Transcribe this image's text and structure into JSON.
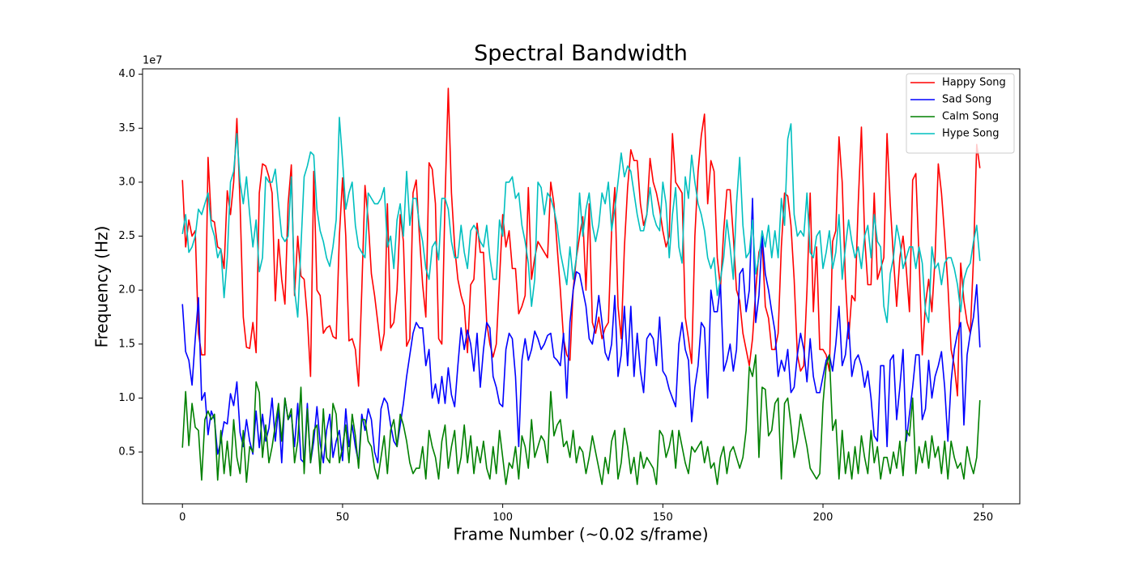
{
  "chart_data": {
    "type": "line",
    "title": "Spectral Bandwidth",
    "x_label": "Frame Number (~0.02 s/frame)",
    "y_label": "Frequency (Hz)",
    "y_offset_label": "1e7",
    "xlim": [
      -12.45,
      261.45
    ],
    "xticks": [
      0,
      50,
      100,
      150,
      200,
      250
    ],
    "ylim": [
      0.02,
      4.05
    ],
    "yticks": [
      0.5,
      {
        "value": 1,
        "label": "1.0"
      },
      1.5,
      {
        "value": 2,
        "label": "2.0"
      },
      2.5,
      {
        "value": 3,
        "label": "3.0"
      },
      3.5,
      {
        "value": 4,
        "label": "4.0"
      }
    ],
    "grid": false,
    "legend": "upper right",
    "x": [
      0,
      1,
      2,
      3,
      4,
      5,
      6,
      7,
      8,
      9,
      10,
      11,
      12,
      13,
      14,
      15,
      16,
      17,
      18,
      19,
      20,
      21,
      22,
      23,
      24,
      25,
      26,
      27,
      28,
      29,
      30,
      31,
      32,
      33,
      34,
      35,
      36,
      37,
      38,
      39,
      40,
      41,
      42,
      43,
      44,
      45,
      46,
      47,
      48,
      49,
      50,
      51,
      52,
      53,
      54,
      55,
      56,
      57,
      58,
      59,
      60,
      61,
      62,
      63,
      64,
      65,
      66,
      67,
      68,
      69,
      70,
      71,
      72,
      73,
      74,
      75,
      76,
      77,
      78,
      79,
      80,
      81,
      82,
      83,
      84,
      85,
      86,
      87,
      88,
      89,
      90,
      91,
      92,
      93,
      94,
      95,
      96,
      97,
      98,
      99,
      100,
      101,
      102,
      103,
      104,
      105,
      106,
      107,
      108,
      109,
      110,
      111,
      112,
      113,
      114,
      115,
      116,
      117,
      118,
      119,
      120,
      121,
      122,
      123,
      124,
      125,
      126,
      127,
      128,
      129,
      130,
      131,
      132,
      133,
      134,
      135,
      136,
      137,
      138,
      139,
      140,
      141,
      142,
      143,
      144,
      145,
      146,
      147,
      148,
      149,
      150,
      151,
      152,
      153,
      154,
      155,
      156,
      157,
      158,
      159,
      160,
      161,
      162,
      163,
      164,
      165,
      166,
      167,
      168,
      169,
      170,
      171,
      172,
      173,
      174,
      175,
      176,
      177,
      178,
      179,
      180,
      181,
      182,
      183,
      184,
      185,
      186,
      187,
      188,
      189,
      190,
      191,
      192,
      193,
      194,
      195,
      196,
      197,
      198,
      199,
      200,
      201,
      202,
      203,
      204,
      205,
      206,
      207,
      208,
      209,
      210,
      211,
      212,
      213,
      214,
      215,
      216,
      217,
      218,
      219,
      220,
      221,
      222,
      223,
      224,
      225,
      226,
      227,
      228,
      229,
      230,
      231,
      232,
      233,
      234,
      235,
      236,
      237,
      238,
      239,
      240,
      241,
      242,
      243,
      244,
      245,
      246,
      247,
      248,
      249
    ],
    "series": [
      {
        "name": "Happy Song",
        "color": "#ff0000",
        "values": [
          3.02,
          2.4,
          2.65,
          2.5,
          2.55,
          1.6,
          1.4,
          1.4,
          3.23,
          2.65,
          2.63,
          2.4,
          2.38,
          2.2,
          2.92,
          2.7,
          3.0,
          3.59,
          2.8,
          1.75,
          1.47,
          1.46,
          1.7,
          1.42,
          2.9,
          3.17,
          3.15,
          3.05,
          2.9,
          1.9,
          2.47,
          2.1,
          1.87,
          2.8,
          3.16,
          1.95,
          2.5,
          2.13,
          2.1,
          1.75,
          1.2,
          3.1,
          2.0,
          1.95,
          1.6,
          1.65,
          1.67,
          1.57,
          1.55,
          2.5,
          3.04,
          2.5,
          1.53,
          1.55,
          1.45,
          1.11,
          2.0,
          2.97,
          2.65,
          2.15,
          1.95,
          1.7,
          1.44,
          1.6,
          2.8,
          1.65,
          1.7,
          2.0,
          2.7,
          2.45,
          1.48,
          1.55,
          2.9,
          3.02,
          2.5,
          2.05,
          1.75,
          3.18,
          3.12,
          2.8,
          1.55,
          1.5,
          2.85,
          3.87,
          2.9,
          2.4,
          2.1,
          1.95,
          1.85,
          1.42,
          2.05,
          2.1,
          2.62,
          2.35,
          2.35,
          1.7,
          1.5,
          1.38,
          1.5,
          2.1,
          2.7,
          2.4,
          2.55,
          2.2,
          2.2,
          1.78,
          1.85,
          1.95,
          2.95,
          2.1,
          2.3,
          2.45,
          2.4,
          2.35,
          2.3,
          3.0,
          2.8,
          2.4,
          2.0,
          1.55,
          1.4,
          1.35,
          2.0,
          2.3,
          2.5,
          2.68,
          2.0,
          2.8,
          1.7,
          1.6,
          1.75,
          1.55,
          1.65,
          1.7,
          2.55,
          2.95,
          1.85,
          1.55,
          2.4,
          2.95,
          3.3,
          3.2,
          3.2,
          2.8,
          2.6,
          2.7,
          3.22,
          3.0,
          2.9,
          2.75,
          2.55,
          2.4,
          2.5,
          3.45,
          3.0,
          2.95,
          2.9,
          1.75,
          1.55,
          1.32,
          2.5,
          3.1,
          3.43,
          3.63,
          2.8,
          3.2,
          3.1,
          2.3,
          2.02,
          2.55,
          2.93,
          2.93,
          2.5,
          2.0,
          1.9,
          1.6,
          1.45,
          1.3,
          1.55,
          2.0,
          2.35,
          2.45,
          1.85,
          1.74,
          1.45,
          1.45,
          1.6,
          2.4,
          2.9,
          2.87,
          2.6,
          2.1,
          1.4,
          1.25,
          1.3,
          2.0,
          2.9,
          1.8,
          2.4,
          1.45,
          1.45,
          1.4,
          1.25,
          2.45,
          2.55,
          3.42,
          3.0,
          2.1,
          1.55,
          1.95,
          1.9,
          2.8,
          3.51,
          2.5,
          2.05,
          2.05,
          2.9,
          2.1,
          2.2,
          2.3,
          3.45,
          2.8,
          2.3,
          1.85,
          2.3,
          2.5,
          2.2,
          1.8,
          3.02,
          3.08,
          2.3,
          1.4,
          1.87,
          2.1,
          1.8,
          2.3,
          3.17,
          2.9,
          2.5,
          2.05,
          1.45,
          1.3,
          1.02,
          2.25,
          1.9,
          1.7,
          1.6,
          2.3,
          3.35,
          3.13
        ]
      },
      {
        "name": "Sad Song",
        "color": "#0000ff",
        "values": [
          1.87,
          1.43,
          1.35,
          1.12,
          1.55,
          1.93,
          0.98,
          1.05,
          0.66,
          0.88,
          0.8,
          0.48,
          0.6,
          0.78,
          0.76,
          1.04,
          0.93,
          1.15,
          0.68,
          0.55,
          0.8,
          0.6,
          0.48,
          0.88,
          0.54,
          0.85,
          0.6,
          0.72,
          1.0,
          0.6,
          0.9,
          0.4,
          1.0,
          0.8,
          0.85,
          0.55,
          0.95,
          0.43,
          0.4,
          0.95,
          0.4,
          0.6,
          0.92,
          0.58,
          0.4,
          0.7,
          0.85,
          0.45,
          0.6,
          0.7,
          0.42,
          0.9,
          0.55,
          0.75,
          0.55,
          0.4,
          0.85,
          0.7,
          0.9,
          0.8,
          0.5,
          0.4,
          0.9,
          1.0,
          0.95,
          0.75,
          0.6,
          0.55,
          0.75,
          0.95,
          1.2,
          1.4,
          1.6,
          1.7,
          1.65,
          1.65,
          1.3,
          1.45,
          1.0,
          1.13,
          0.95,
          1.2,
          0.95,
          1.28,
          1.03,
          0.92,
          1.3,
          1.65,
          1.45,
          1.63,
          1.5,
          1.25,
          1.6,
          1.1,
          1.45,
          1.7,
          1.65,
          1.2,
          1.1,
          0.95,
          0.92,
          1.45,
          1.6,
          1.55,
          1.2,
          0.55,
          1.35,
          1.55,
          1.35,
          1.45,
          1.62,
          1.55,
          1.45,
          1.5,
          1.58,
          1.6,
          1.38,
          1.35,
          1.3,
          1.6,
          1.0,
          1.7,
          2.0,
          2.17,
          2.15,
          2.0,
          1.85,
          1.55,
          1.5,
          1.7,
          1.95,
          1.7,
          1.42,
          1.35,
          1.5,
          1.95,
          1.2,
          1.4,
          1.85,
          1.3,
          1.85,
          1.2,
          1.6,
          1.25,
          1.05,
          1.55,
          1.6,
          1.55,
          1.3,
          1.75,
          1.25,
          1.2,
          1.08,
          1.0,
          0.92,
          1.5,
          1.7,
          1.45,
          1.35,
          0.78,
          1.1,
          1.3,
          1.7,
          1.65,
          1.0,
          2.0,
          1.8,
          1.8,
          2.05,
          1.25,
          1.35,
          1.5,
          1.25,
          1.45,
          2.15,
          2.2,
          1.8,
          2.0,
          2.85,
          1.7,
          1.95,
          2.5,
          2.15,
          2.0,
          1.8,
          1.62,
          1.2,
          1.35,
          1.25,
          1.45,
          1.05,
          1.1,
          1.4,
          1.6,
          1.45,
          1.15,
          1.55,
          1.2,
          1.05,
          1.05,
          1.2,
          1.35,
          1.4,
          1.25,
          1.5,
          1.85,
          1.3,
          1.4,
          1.7,
          1.2,
          1.35,
          1.4,
          1.3,
          1.1,
          1.25,
          1.0,
          0.65,
          0.6,
          1.3,
          1.3,
          0.55,
          1.35,
          1.4,
          0.8,
          1.1,
          1.45,
          0.6,
          0.85,
          1.1,
          1.4,
          1.4,
          0.8,
          0.9,
          1.35,
          1.0,
          1.2,
          1.3,
          1.43,
          1.1,
          0.6,
          1.15,
          1.45,
          1.6,
          1.7,
          0.75,
          1.4,
          1.6,
          1.75,
          2.05,
          1.47
        ]
      },
      {
        "name": "Calm Song",
        "color": "#008000",
        "values": [
          0.54,
          1.06,
          0.56,
          0.95,
          0.73,
          0.7,
          0.24,
          0.8,
          0.88,
          0.8,
          0.85,
          0.24,
          0.7,
          0.3,
          0.6,
          0.28,
          0.8,
          0.45,
          0.3,
          0.7,
          0.22,
          0.55,
          0.5,
          1.15,
          1.05,
          0.45,
          0.75,
          0.4,
          0.55,
          0.75,
          0.95,
          0.6,
          1.0,
          0.8,
          0.9,
          0.4,
          0.6,
          1.1,
          0.3,
          0.9,
          0.4,
          0.7,
          0.75,
          0.3,
          0.9,
          0.45,
          0.4,
          0.95,
          0.85,
          0.4,
          0.55,
          0.75,
          0.4,
          0.85,
          0.65,
          0.35,
          0.8,
          0.8,
          0.6,
          0.55,
          0.35,
          0.25,
          0.45,
          0.65,
          0.3,
          0.7,
          0.8,
          0.55,
          0.85,
          0.75,
          0.6,
          0.4,
          0.3,
          0.35,
          0.35,
          0.55,
          0.25,
          0.7,
          0.55,
          0.45,
          0.25,
          0.6,
          0.75,
          0.35,
          0.55,
          0.7,
          0.3,
          0.45,
          0.75,
          0.4,
          0.65,
          0.3,
          0.55,
          0.4,
          0.6,
          0.35,
          0.25,
          0.55,
          0.3,
          0.7,
          0.45,
          0.2,
          0.4,
          0.35,
          0.55,
          0.25,
          0.65,
          0.55,
          0.35,
          0.8,
          0.45,
          0.55,
          0.65,
          0.6,
          0.4,
          1.06,
          0.65,
          0.75,
          0.8,
          0.55,
          0.6,
          0.45,
          0.7,
          0.4,
          0.55,
          0.5,
          0.3,
          0.45,
          0.65,
          0.5,
          0.35,
          0.2,
          0.45,
          0.3,
          0.6,
          0.7,
          0.25,
          0.4,
          0.72,
          0.55,
          0.3,
          0.45,
          0.2,
          0.5,
          0.35,
          0.45,
          0.4,
          0.35,
          0.2,
          0.7,
          0.65,
          0.45,
          0.55,
          0.7,
          0.35,
          0.7,
          0.55,
          0.4,
          0.3,
          0.55,
          0.5,
          0.55,
          0.6,
          0.4,
          0.55,
          0.35,
          0.4,
          0.2,
          0.45,
          0.55,
          0.3,
          0.5,
          0.55,
          0.45,
          0.35,
          0.45,
          0.7,
          1.29,
          1.2,
          1.4,
          0.45,
          1.1,
          1.08,
          0.65,
          0.7,
          0.95,
          1.0,
          0.25,
          0.95,
          1.0,
          0.75,
          0.45,
          0.6,
          0.85,
          0.7,
          0.55,
          0.35,
          0.3,
          0.25,
          0.3,
          0.95,
          1.3,
          1.4,
          0.7,
          0.8,
          0.25,
          0.7,
          0.3,
          0.5,
          0.25,
          0.55,
          0.3,
          0.65,
          0.45,
          0.3,
          0.7,
          0.4,
          0.55,
          0.25,
          0.45,
          0.45,
          0.3,
          0.5,
          0.35,
          0.6,
          0.28,
          0.7,
          0.65,
          1.0,
          0.3,
          0.55,
          0.4,
          0.6,
          0.35,
          0.65,
          0.45,
          0.55,
          0.3,
          0.6,
          0.25,
          0.6,
          0.45,
          0.35,
          0.4,
          0.25,
          0.55,
          0.4,
          0.3,
          0.45,
          0.98
        ]
      },
      {
        "name": "Hype Song",
        "color": "#00bfbf",
        "values": [
          2.52,
          2.7,
          2.35,
          2.4,
          2.5,
          2.75,
          2.7,
          2.8,
          2.9,
          2.6,
          2.5,
          2.3,
          2.38,
          1.93,
          2.3,
          3.0,
          3.1,
          3.45,
          3.0,
          2.8,
          3.05,
          2.7,
          2.4,
          2.65,
          2.17,
          2.3,
          3.05,
          3.0,
          3.0,
          3.12,
          2.8,
          2.5,
          2.45,
          2.5,
          3.05,
          2.0,
          1.75,
          2.4,
          3.05,
          3.15,
          3.28,
          3.25,
          2.75,
          2.55,
          2.45,
          2.3,
          2.22,
          2.4,
          2.65,
          3.6,
          3.2,
          2.75,
          2.9,
          3.0,
          2.6,
          2.4,
          2.35,
          2.3,
          2.9,
          2.85,
          2.8,
          2.8,
          2.85,
          2.95,
          2.4,
          2.5,
          2.2,
          2.65,
          2.8,
          2.5,
          3.1,
          2.6,
          2.85,
          2.85,
          2.6,
          2.45,
          2.2,
          2.1,
          2.4,
          2.45,
          2.28,
          2.85,
          2.85,
          2.75,
          2.45,
          2.3,
          2.3,
          2.6,
          2.35,
          2.2,
          2.55,
          2.6,
          2.55,
          2.45,
          2.4,
          2.6,
          2.3,
          2.1,
          2.1,
          2.65,
          2.5,
          3.0,
          3.0,
          3.05,
          2.85,
          2.9,
          2.6,
          2.45,
          2.25,
          1.85,
          2.1,
          3.0,
          2.95,
          2.7,
          2.9,
          2.85,
          2.75,
          2.6,
          2.35,
          2.2,
          2.05,
          2.4,
          2.1,
          2.3,
          2.9,
          2.5,
          2.75,
          2.9,
          2.6,
          2.45,
          2.6,
          2.9,
          2.8,
          3.0,
          2.55,
          2.75,
          3.0,
          3.27,
          3.05,
          3.15,
          3.1,
          2.9,
          2.7,
          2.55,
          2.55,
          2.7,
          2.95,
          2.7,
          2.6,
          2.55,
          3.0,
          2.8,
          2.3,
          2.7,
          2.95,
          2.4,
          2.25,
          3.05,
          2.85,
          3.25,
          3.0,
          2.8,
          2.7,
          2.55,
          2.3,
          2.2,
          2.3,
          1.95,
          2.1,
          2.3,
          2.65,
          2.4,
          2.1,
          2.8,
          3.23,
          2.6,
          2.3,
          2.35,
          2.65,
          2.15,
          2.3,
          2.55,
          2.4,
          2.6,
          2.3,
          2.55,
          2.3,
          2.85,
          2.6,
          3.4,
          3.54,
          2.7,
          2.5,
          2.55,
          2.5,
          2.9,
          2.35,
          2.3,
          2.5,
          2.55,
          2.2,
          2.35,
          2.55,
          2.2,
          2.35,
          2.7,
          2.1,
          2.4,
          2.65,
          2.45,
          2.3,
          2.4,
          2.2,
          2.5,
          2.6,
          2.3,
          2.7,
          2.45,
          2.4,
          1.85,
          1.7,
          2.15,
          2.3,
          2.6,
          2.45,
          2.2,
          2.3,
          2.4,
          2.4,
          2.2,
          2.4,
          2.25,
          1.8,
          1.7,
          2.4,
          2.2,
          2.25,
          2.05,
          2.25,
          2.3,
          2.3,
          2.2,
          2.05,
          1.8,
          2.1,
          2.2,
          2.25,
          2.45,
          2.6,
          2.27
        ]
      }
    ]
  }
}
